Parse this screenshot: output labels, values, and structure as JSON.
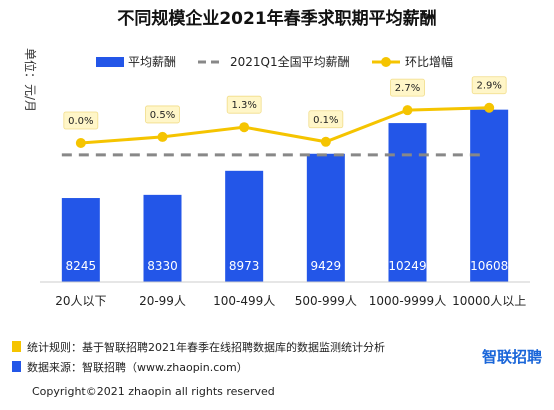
{
  "chart_data": {
    "type": "bar",
    "title": "不同规模企业2021年春季求职期平均薪酬",
    "ylabel": "单位：元/月",
    "categories": [
      "20人以下",
      "20-99人",
      "100-499人",
      "500-999人",
      "1000-9999人",
      "10000人以上"
    ],
    "series": [
      {
        "name": "平均薪酬",
        "type": "bar",
        "values": [
          8245,
          8330,
          8973,
          9429,
          10249,
          10608
        ],
        "color": "#2356e8"
      },
      {
        "name": "2021Q1全国平均薪酬",
        "type": "dashed-line",
        "value": 9400,
        "color": "#888888"
      },
      {
        "name": "环比增幅",
        "type": "line",
        "values": [
          0.0,
          0.5,
          1.3,
          0.1,
          2.7,
          2.9
        ],
        "labels": [
          "0.0%",
          "0.5%",
          "1.3%",
          "0.1%",
          "2.7%",
          "2.9%"
        ],
        "color": "#f5c400"
      }
    ],
    "value_labels": [
      "8245",
      "8330",
      "8973",
      "9429",
      "10249",
      "10608"
    ],
    "ylim": [
      6000,
      11000
    ],
    "grid": false,
    "legend_position": "top"
  },
  "notes": {
    "rule": "统计规则：基于智联招聘2021年春季在线招聘数据库的数据监测统计分析",
    "source": "数据来源：智联招聘（www.zhaopin.com）"
  },
  "brand": "智联招聘",
  "copyright": "Copyright©2021 zhaopin all rights reserved",
  "colors": {
    "bar": "#2356e8",
    "line": "#f5c400",
    "avg": "#888888",
    "brand": "#1a66d9"
  }
}
